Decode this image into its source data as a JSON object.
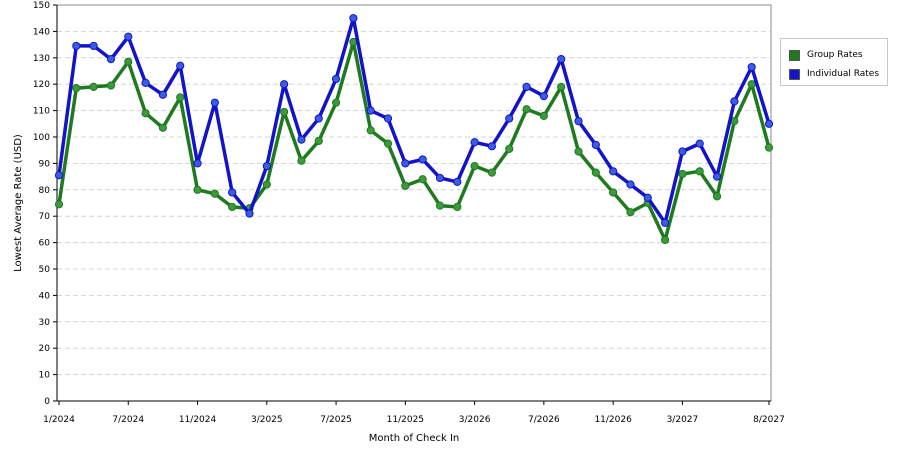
{
  "chart_data": {
    "type": "line",
    "title": "",
    "xlabel": "Month of Check In",
    "ylabel": "Lowest Average Rate (USD)",
    "ylim": [
      0,
      150
    ],
    "yticks": [
      0,
      10,
      20,
      30,
      40,
      50,
      60,
      70,
      80,
      90,
      100,
      110,
      120,
      130,
      140,
      150
    ],
    "grid": "horizontal dashed",
    "legend_position": "right",
    "x_tick_labels": [
      {
        "index": 0,
        "label": "1/2024"
      },
      {
        "index": 4,
        "label": "7/2024"
      },
      {
        "index": 8,
        "label": "11/2024"
      },
      {
        "index": 12,
        "label": "3/2025"
      },
      {
        "index": 16,
        "label": "7/2025"
      },
      {
        "index": 20,
        "label": "11/2025"
      },
      {
        "index": 24,
        "label": "3/2026"
      },
      {
        "index": 28,
        "label": "7/2026"
      },
      {
        "index": 32,
        "label": "11/2026"
      },
      {
        "index": 36,
        "label": "3/2027"
      },
      {
        "index": 41,
        "label": "8/2027"
      }
    ],
    "series": [
      {
        "name": "Group Rates",
        "color": "#1f7a1f",
        "marker_color": "#3c9a3c",
        "values": [
          74.5,
          118.5,
          119,
          119.5,
          128.5,
          109,
          103.5,
          115,
          80,
          78.5,
          73.5,
          73,
          82,
          109.5,
          91,
          98.5,
          113,
          136,
          102.5,
          97.5,
          81.5,
          84,
          74,
          73.5,
          89,
          86.5,
          95.5,
          110.5,
          108,
          119,
          94.5,
          86.5,
          79,
          71.5,
          75,
          61,
          86,
          87,
          77.5,
          106,
          120,
          96
        ]
      },
      {
        "name": "Individual Rates",
        "color": "#1313c9",
        "marker_color": "#3a5ee0",
        "values": [
          85.5,
          134.5,
          134.5,
          129.5,
          138,
          120.5,
          116,
          127,
          90,
          113,
          79,
          71,
          89,
          120,
          99,
          107,
          122,
          145,
          110,
          107,
          90,
          91.5,
          84.5,
          83,
          98,
          96.5,
          107,
          119,
          115.5,
          129.5,
          106,
          97,
          87,
          82,
          77,
          67.5,
          94.5,
          97.5,
          85,
          113.5,
          126.5,
          105
        ]
      }
    ]
  }
}
